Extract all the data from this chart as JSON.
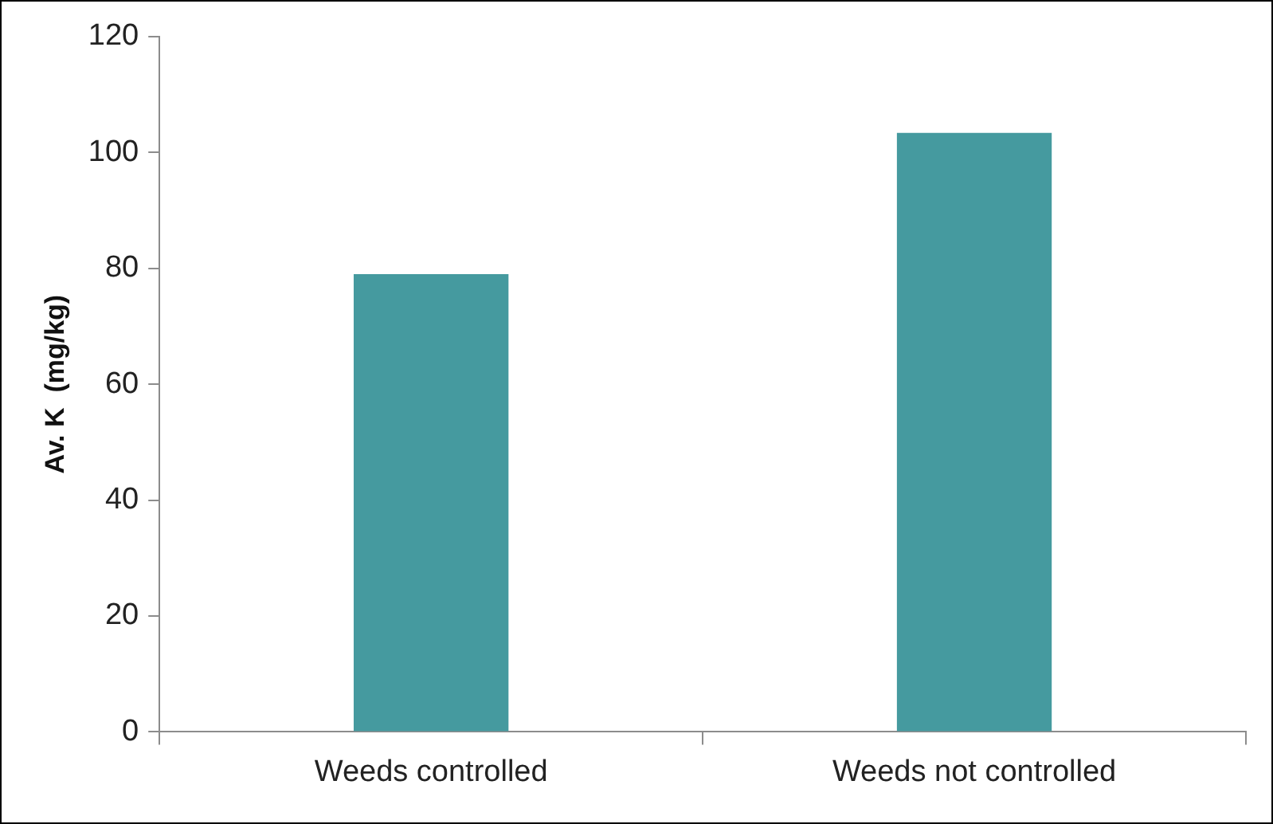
{
  "chart_data": {
    "type": "bar",
    "ylabel": "Av. K  (mg/kg)",
    "categories": [
      "Weeds controlled",
      "Weeds not controlled"
    ],
    "values": [
      79,
      103.4
    ],
    "color": "#459a9f",
    "ylim": [
      0,
      120
    ],
    "yticks": [
      0,
      20,
      40,
      60,
      80,
      100,
      120
    ],
    "grid": false,
    "legend": false
  }
}
